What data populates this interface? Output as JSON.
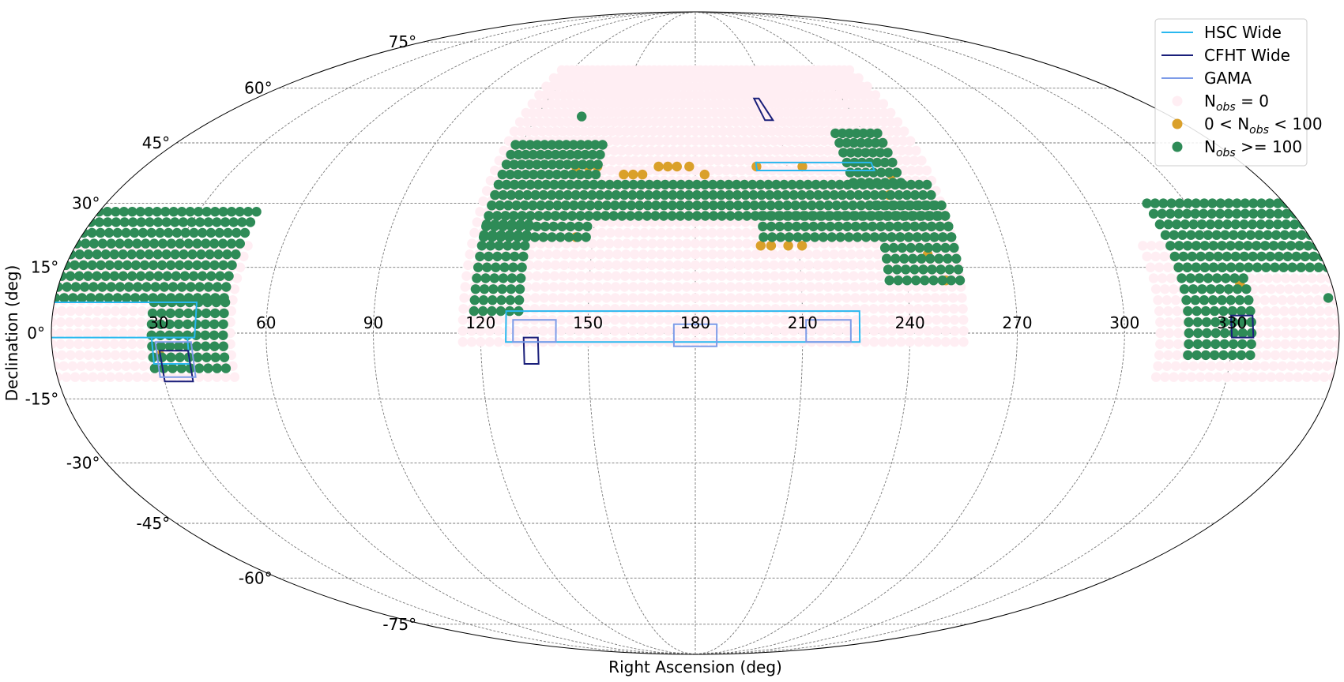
{
  "chart_data": {
    "type": "scatter",
    "projection": "mollweide",
    "xlabel": "Right Ascension (deg)",
    "ylabel": "Declination (deg)",
    "ra_tick_labels": [
      "30",
      "60",
      "90",
      "120",
      "150",
      "180",
      "210",
      "240",
      "270",
      "300",
      "330"
    ],
    "dec_tick_labels": [
      "75°",
      "60°",
      "45°",
      "30°",
      "15°",
      "0°",
      "-15°",
      "-30°",
      "-45°",
      "-60°",
      "-75°"
    ],
    "grid": true,
    "legend_position": "top-right",
    "legend": [
      {
        "label": "HSC Wide",
        "kind": "line",
        "color": "#29b8ef"
      },
      {
        "label": "CFHT Wide",
        "kind": "line",
        "color": "#1a1f7a"
      },
      {
        "label": "GAMA",
        "kind": "line",
        "color": "#7d9be8"
      },
      {
        "label_base": "N",
        "label_sub": "obs",
        "label_tail": " = 0",
        "kind": "dot",
        "color": "#ffeef3"
      },
      {
        "label_base": "0 < N",
        "label_sub": "obs",
        "label_tail": " < 100",
        "kind": "dot",
        "color": "#daa02a"
      },
      {
        "label_base": "N",
        "label_sub": "obs",
        "label_tail": " >= 100",
        "kind": "dot",
        "color": "#2e8b57"
      }
    ],
    "series": [
      {
        "name": "Nobs = 0",
        "color": "#ffeef3",
        "regions": [
          {
            "ra": [
              -10,
              50
            ],
            "dec": [
              -10,
              20
            ]
          },
          {
            "ra": [
              115,
              255
            ],
            "dec": [
              -2,
              66
            ]
          },
          {
            "ra": [
              310,
              370
            ],
            "dec": [
              -10,
              20
            ]
          }
        ]
      },
      {
        "name": "0 < Nobs < 100",
        "color": "#daa02a",
        "points": [
          [
            141,
            39
          ],
          [
            145,
            39
          ],
          [
            148,
            39
          ],
          [
            157,
            37
          ],
          [
            160,
            37
          ],
          [
            163,
            37
          ],
          [
            168,
            39
          ],
          [
            171,
            39
          ],
          [
            174,
            39
          ],
          [
            178,
            39
          ],
          [
            183,
            37
          ],
          [
            200,
            39
          ],
          [
            215,
            39
          ],
          [
            240,
            32
          ],
          [
            243,
            37
          ],
          [
            145,
            22
          ],
          [
            199,
            20
          ],
          [
            202,
            20
          ],
          [
            207,
            20
          ],
          [
            211,
            20
          ],
          [
            247,
            18
          ],
          [
            251,
            12
          ],
          [
            30,
            -5
          ],
          [
            334,
            11
          ]
        ]
      },
      {
        "name": "Nobs >= 100",
        "color": "#2e8b57",
        "regions": [
          {
            "ra": [
              -10,
              48
            ],
            "dec": [
              8,
              30
            ]
          },
          {
            "ra": [
              28,
              48
            ],
            "dec": [
              -8,
              8
            ]
          },
          {
            "ra": [
              318,
              370
            ],
            "dec": [
              15,
              30
            ]
          },
          {
            "ra": [
              318,
              336
            ],
            "dec": [
              -5,
              15
            ]
          },
          {
            "ra": [
              118,
              132
            ],
            "dec": [
              5,
              25
            ]
          },
          {
            "ra": [
              118,
              255
            ],
            "dec": [
              27,
              35
            ]
          },
          {
            "ra": [
              118,
              150
            ],
            "dec": [
              22,
              45
            ]
          },
          {
            "ra": [
              235,
              255
            ],
            "dec": [
              12,
              30
            ]
          },
          {
            "ra": [
              230,
              245
            ],
            "dec": [
              35,
              48
            ]
          },
          {
            "ra": [
              200,
              255
            ],
            "dec": [
              22,
              27
            ]
          }
        ],
        "points": [
          [
            137,
            52
          ],
          [
            358,
            8
          ]
        ]
      }
    ],
    "footprints": [
      {
        "survey": "HSC Wide",
        "color": "#29b8ef",
        "boxes": [
          [
            -30,
            40,
            -1,
            7
          ],
          [
            127,
            226,
            -2,
            5
          ],
          [
            200,
            238,
            38,
            40
          ],
          [
            28,
            38,
            -7,
            -1
          ]
        ]
      },
      {
        "survey": "CFHT Wide",
        "color": "#1a1f7a",
        "boxes": [
          [
            30,
            38,
            -11,
            -4
          ],
          [
            132,
            136,
            -7,
            -1
          ],
          [
            330,
            336,
            -1,
            4
          ]
        ]
      },
      {
        "survey": "GAMA",
        "color": "#7d9be8",
        "boxes": [
          [
            29,
            39,
            -10,
            -2
          ],
          [
            129,
            141,
            -2,
            3
          ],
          [
            174,
            186,
            -3,
            2
          ],
          [
            211,
            223.5,
            -2,
            3
          ]
        ]
      },
      {
        "survey": "CFHT Wide",
        "color": "#1a1f7a",
        "kind": "parallelogram",
        "corners": [
          [
            204,
            57
          ],
          [
            206,
            57
          ],
          [
            209,
            51
          ],
          [
            206,
            51
          ]
        ]
      }
    ]
  }
}
